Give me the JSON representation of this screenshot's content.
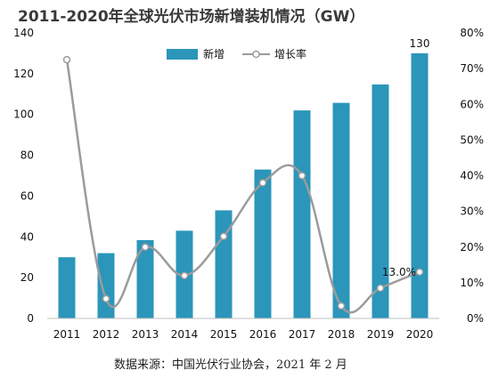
{
  "chart_data": {
    "type": "bar",
    "title": "2011-2020年全球光伏市场新增装机情况（GW）",
    "categories": [
      "2011",
      "2012",
      "2013",
      "2014",
      "2015",
      "2016",
      "2017",
      "2018",
      "2019",
      "2020"
    ],
    "series": [
      {
        "name": "新增",
        "type": "bar",
        "axis": "left",
        "color": "#2b96ba",
        "values": [
          30,
          32,
          38.4,
          43,
          53,
          73,
          102,
          105.7,
          114.7,
          130
        ]
      },
      {
        "name": "增长率",
        "type": "line",
        "axis": "right",
        "color": "#9b9b9b",
        "values": [
          72.5,
          5.5,
          20,
          12,
          23,
          38,
          40,
          3.5,
          8.5,
          13.0
        ]
      }
    ],
    "left_axis": {
      "min": 0,
      "max": 140,
      "ticks": [
        "0",
        "20",
        "40",
        "60",
        "80",
        "100",
        "120",
        "140"
      ]
    },
    "right_axis": {
      "min": 0,
      "max": 80,
      "ticks": [
        "0%",
        "10%",
        "20%",
        "30%",
        "40%",
        "50%",
        "60%",
        "70%",
        "80%"
      ]
    },
    "data_labels": [
      {
        "series": 0,
        "index": 9,
        "text": "130"
      },
      {
        "series": 1,
        "index": 9,
        "text": "13.0%"
      }
    ],
    "legend": {
      "position": "top-center",
      "items": [
        "新增",
        "增长率"
      ]
    },
    "grid": false,
    "source": "数据来源：中国光伏行业协会，2021 年 2 月"
  }
}
